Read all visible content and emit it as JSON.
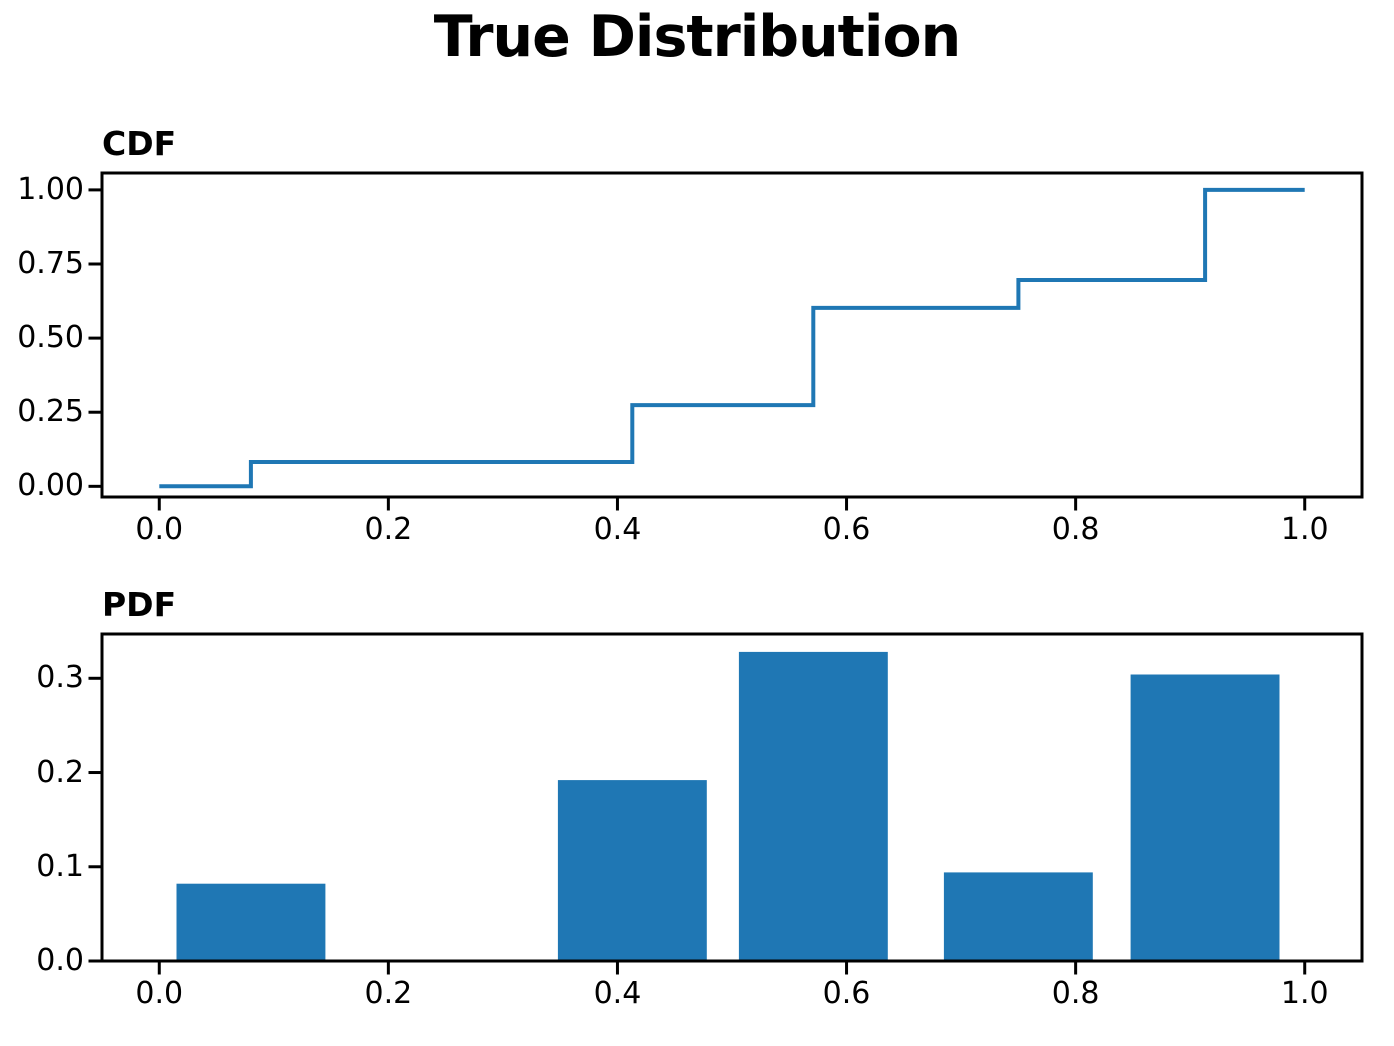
{
  "figure": {
    "title": "True Distribution",
    "background": "#ffffff"
  },
  "colors": {
    "accent_blue": "#1f77b4",
    "text": "#000000",
    "spine": "#000000"
  },
  "chart_data": [
    {
      "type": "line",
      "variant": "step-post",
      "title": "CDF",
      "step_x": [
        0.0,
        0.08,
        0.413,
        0.571,
        0.75,
        0.913,
        1.0
      ],
      "step_y": [
        0.0,
        0.082,
        0.274,
        0.602,
        0.696,
        1.0,
        1.0
      ],
      "line_color": "#1f77b4",
      "line_width": 4,
      "xlim": [
        -0.05,
        1.05
      ],
      "ylim": [
        -0.036,
        1.057
      ],
      "xtick_values": [
        0.0,
        0.2,
        0.4,
        0.6,
        0.8,
        1.0
      ],
      "xtick_labels": [
        "0.0",
        "0.2",
        "0.4",
        "0.6",
        "0.8",
        "1.0"
      ],
      "ytick_values": [
        0.0,
        0.25,
        0.5,
        0.75,
        1.0
      ],
      "ytick_labels": [
        "0.00",
        "0.25",
        "0.50",
        "0.75",
        "1.00"
      ],
      "grid": false,
      "legend": null
    },
    {
      "type": "bar",
      "title": "PDF",
      "bar_centers": [
        0.08,
        0.413,
        0.571,
        0.75,
        0.913
      ],
      "bar_heights": [
        0.082,
        0.192,
        0.328,
        0.094,
        0.304
      ],
      "bar_width": 0.13,
      "bar_color": "#1f77b4",
      "xlim": [
        -0.05,
        1.05
      ],
      "ylim": [
        0.0,
        0.347
      ],
      "xtick_values": [
        0.0,
        0.2,
        0.4,
        0.6,
        0.8,
        1.0
      ],
      "xtick_labels": [
        "0.0",
        "0.2",
        "0.4",
        "0.6",
        "0.8",
        "1.0"
      ],
      "ytick_values": [
        0.0,
        0.1,
        0.2,
        0.3
      ],
      "ytick_labels": [
        "0.0",
        "0.1",
        "0.2",
        "0.3"
      ],
      "grid": false,
      "legend": null
    }
  ]
}
